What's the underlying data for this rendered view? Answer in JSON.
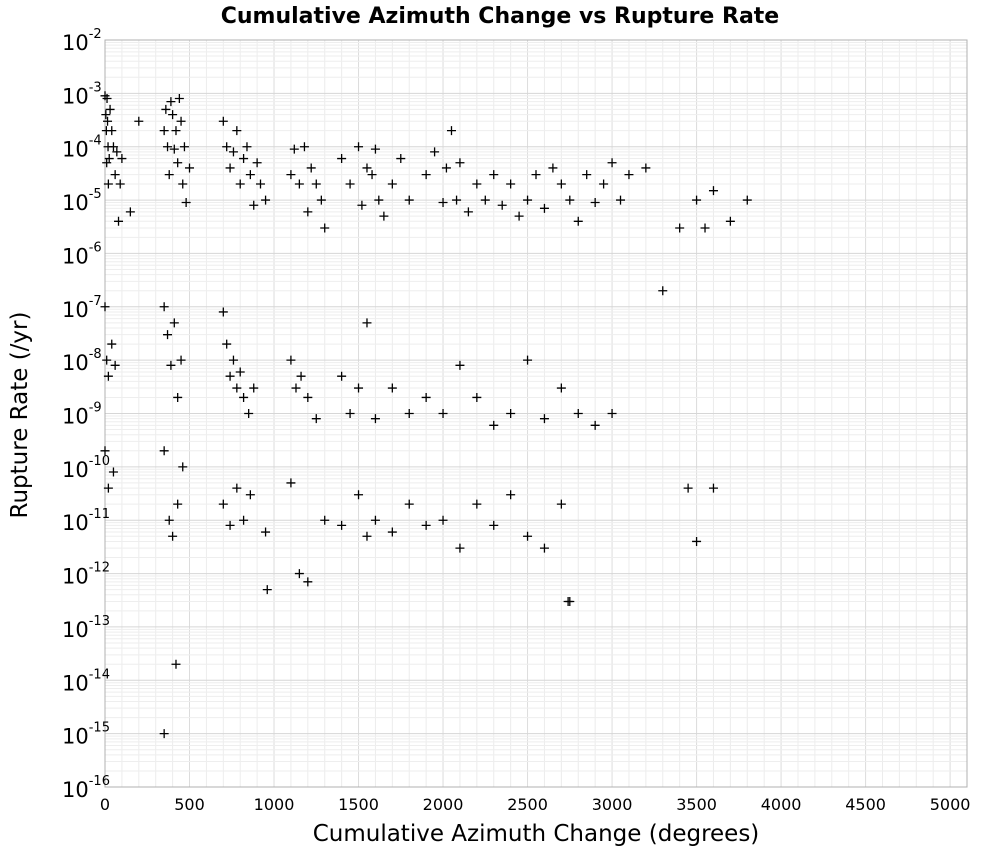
{
  "chart_data": {
    "type": "scatter",
    "title": "Cumulative Azimuth Change vs Rupture Rate",
    "xlabel": "Cumulative Azimuth Change (degrees)",
    "ylabel": "Rupture Rate (/yr)",
    "x_scale": "linear",
    "y_scale": "log",
    "xlim": [
      0,
      5100
    ],
    "ylim": [
      1e-16,
      0.01
    ],
    "x_ticks": [
      "0",
      "500",
      "1000",
      "1500",
      "2000",
      "2500",
      "3000",
      "3500",
      "4000",
      "4500",
      "5000"
    ],
    "x_tick_values": [
      0,
      500,
      1000,
      1500,
      2000,
      2500,
      3000,
      3500,
      4000,
      4500,
      5000
    ],
    "y_ticks": [
      {
        "base": "10",
        "exp": "-2"
      },
      {
        "base": "10",
        "exp": "-3"
      },
      {
        "base": "10",
        "exp": "-4"
      },
      {
        "base": "10",
        "exp": "-5"
      },
      {
        "base": "10",
        "exp": "-6"
      },
      {
        "base": "10",
        "exp": "-7"
      },
      {
        "base": "10",
        "exp": "-8"
      },
      {
        "base": "10",
        "exp": "-9"
      },
      {
        "base": "10",
        "exp": "-10"
      },
      {
        "base": "10",
        "exp": "-11"
      },
      {
        "base": "10",
        "exp": "-12"
      },
      {
        "base": "10",
        "exp": "-13"
      },
      {
        "base": "10",
        "exp": "-14"
      },
      {
        "base": "10",
        "exp": "-15"
      },
      {
        "base": "10",
        "exp": "-16"
      }
    ],
    "y_tick_exponents": [
      -2,
      -3,
      -4,
      -5,
      -6,
      -7,
      -8,
      -9,
      -10,
      -11,
      -12,
      -13,
      -14,
      -15,
      -16
    ],
    "grid": true,
    "marker": "+",
    "marker_color": "#000000",
    "series": [
      {
        "x": [
          0,
          5,
          8,
          10,
          12,
          15,
          18,
          20,
          25,
          30,
          40,
          50,
          60,
          70,
          80,
          90,
          100,
          150,
          200,
          350,
          360,
          370,
          380,
          390,
          400,
          410,
          420,
          430,
          440,
          450,
          460,
          470,
          480,
          500,
          700,
          720,
          740,
          760,
          780,
          800,
          820,
          840,
          860,
          880,
          900,
          920,
          950,
          1100,
          1120,
          1150,
          1180,
          1200,
          1220,
          1250,
          1280,
          1300,
          1400,
          1450,
          1500,
          1520,
          1550,
          1580,
          1600,
          1620,
          1650,
          1700,
          1750,
          1800,
          1900,
          1950,
          2000,
          2020,
          2050,
          2080,
          2100,
          2150,
          2200,
          2250,
          2300,
          2350,
          2400,
          2450,
          2500,
          2550,
          2600,
          2650,
          2700,
          2750,
          2800,
          2850,
          2900,
          2950,
          3000,
          3050,
          3100,
          3200,
          3300,
          3400,
          3500,
          3550,
          3600,
          3700,
          3800
        ],
        "y": [
          0.0009,
          0.0004,
          0.0002,
          5e-05,
          0.0008,
          0.0003,
          0.0001,
          2e-05,
          6e-05,
          0.0005,
          0.0002,
          0.0001,
          3e-05,
          8e-05,
          4e-06,
          2e-05,
          6e-05,
          6e-06,
          0.0003,
          0.0002,
          0.0005,
          0.0001,
          3e-05,
          0.0007,
          0.0004,
          9e-05,
          0.0002,
          5e-05,
          0.0008,
          0.0003,
          2e-05,
          0.0001,
          9e-06,
          4e-05,
          0.0003,
          0.0001,
          4e-05,
          8e-05,
          0.0002,
          2e-05,
          6e-05,
          0.0001,
          3e-05,
          8e-06,
          5e-05,
          2e-05,
          1e-05,
          3e-05,
          9e-05,
          2e-05,
          0.0001,
          6e-06,
          4e-05,
          2e-05,
          1e-05,
          3e-06,
          6e-05,
          2e-05,
          0.0001,
          8e-06,
          4e-05,
          3e-05,
          9e-05,
          1e-05,
          5e-06,
          2e-05,
          6e-05,
          1e-05,
          3e-05,
          8e-05,
          9e-06,
          4e-05,
          0.0002,
          1e-05,
          5e-05,
          6e-06,
          2e-05,
          1e-05,
          3e-05,
          8e-06,
          2e-05,
          5e-06,
          1e-05,
          3e-05,
          7e-06,
          4e-05,
          2e-05,
          1e-05,
          4e-06,
          3e-05,
          9e-06,
          2e-05,
          5e-05,
          1e-05,
          3e-05,
          4e-05,
          2e-07,
          3e-06,
          1e-05,
          3e-06,
          1.5e-05,
          4e-06,
          1e-05
        ]
      },
      {
        "x": [
          0,
          10,
          20,
          40,
          60,
          350,
          370,
          390,
          410,
          430,
          450,
          700,
          720,
          740,
          760,
          780,
          800,
          820,
          850,
          880,
          1100,
          1130,
          1160,
          1200,
          1250,
          1400,
          1450,
          1500,
          1550,
          1600,
          1700,
          1800,
          1900,
          2000,
          2100,
          2200,
          2300,
          2400,
          2500,
          2600,
          2700,
          2800,
          2900,
          3000
        ],
        "y": [
          1e-07,
          1e-08,
          5e-09,
          2e-08,
          8e-09,
          1e-07,
          3e-08,
          8e-09,
          5e-08,
          2e-09,
          1e-08,
          8e-08,
          2e-08,
          5e-09,
          1e-08,
          3e-09,
          6e-09,
          2e-09,
          1e-09,
          3e-09,
          1e-08,
          3e-09,
          5e-09,
          2e-09,
          8e-10,
          5e-09,
          1e-09,
          3e-09,
          5e-08,
          8e-10,
          3e-09,
          1e-09,
          2e-09,
          1e-09,
          8e-09,
          2e-09,
          6e-10,
          1e-09,
          1e-08,
          8e-10,
          3e-09,
          1e-09,
          6e-10,
          1e-09
        ]
      },
      {
        "x": [
          0,
          20,
          50,
          350,
          380,
          400,
          430,
          460,
          700,
          740,
          780,
          820,
          860,
          950,
          1100,
          1150,
          1200,
          1300,
          1400,
          1500,
          1550,
          1600,
          1700,
          1800,
          1900,
          2000,
          2100,
          2200,
          2300,
          2400,
          2500,
          2600,
          2700,
          2750,
          3450,
          3500,
          3600
        ],
        "y": [
          2e-10,
          4e-11,
          8e-11,
          2e-10,
          1e-11,
          5e-12,
          2e-11,
          1e-10,
          2e-11,
          8e-12,
          4e-11,
          1e-11,
          3e-11,
          6e-12,
          5e-11,
          1e-12,
          7e-13,
          1e-11,
          8e-12,
          3e-11,
          5e-12,
          1e-11,
          6e-12,
          2e-11,
          8e-12,
          1e-11,
          3e-12,
          2e-11,
          8e-12,
          3e-11,
          5e-12,
          3e-12,
          2e-11,
          3e-13,
          4e-11,
          4e-12,
          4e-11
        ]
      },
      {
        "x": [
          350,
          420,
          960,
          2740
        ],
        "y": [
          1e-15,
          2e-14,
          5e-13,
          3e-13
        ]
      }
    ]
  }
}
